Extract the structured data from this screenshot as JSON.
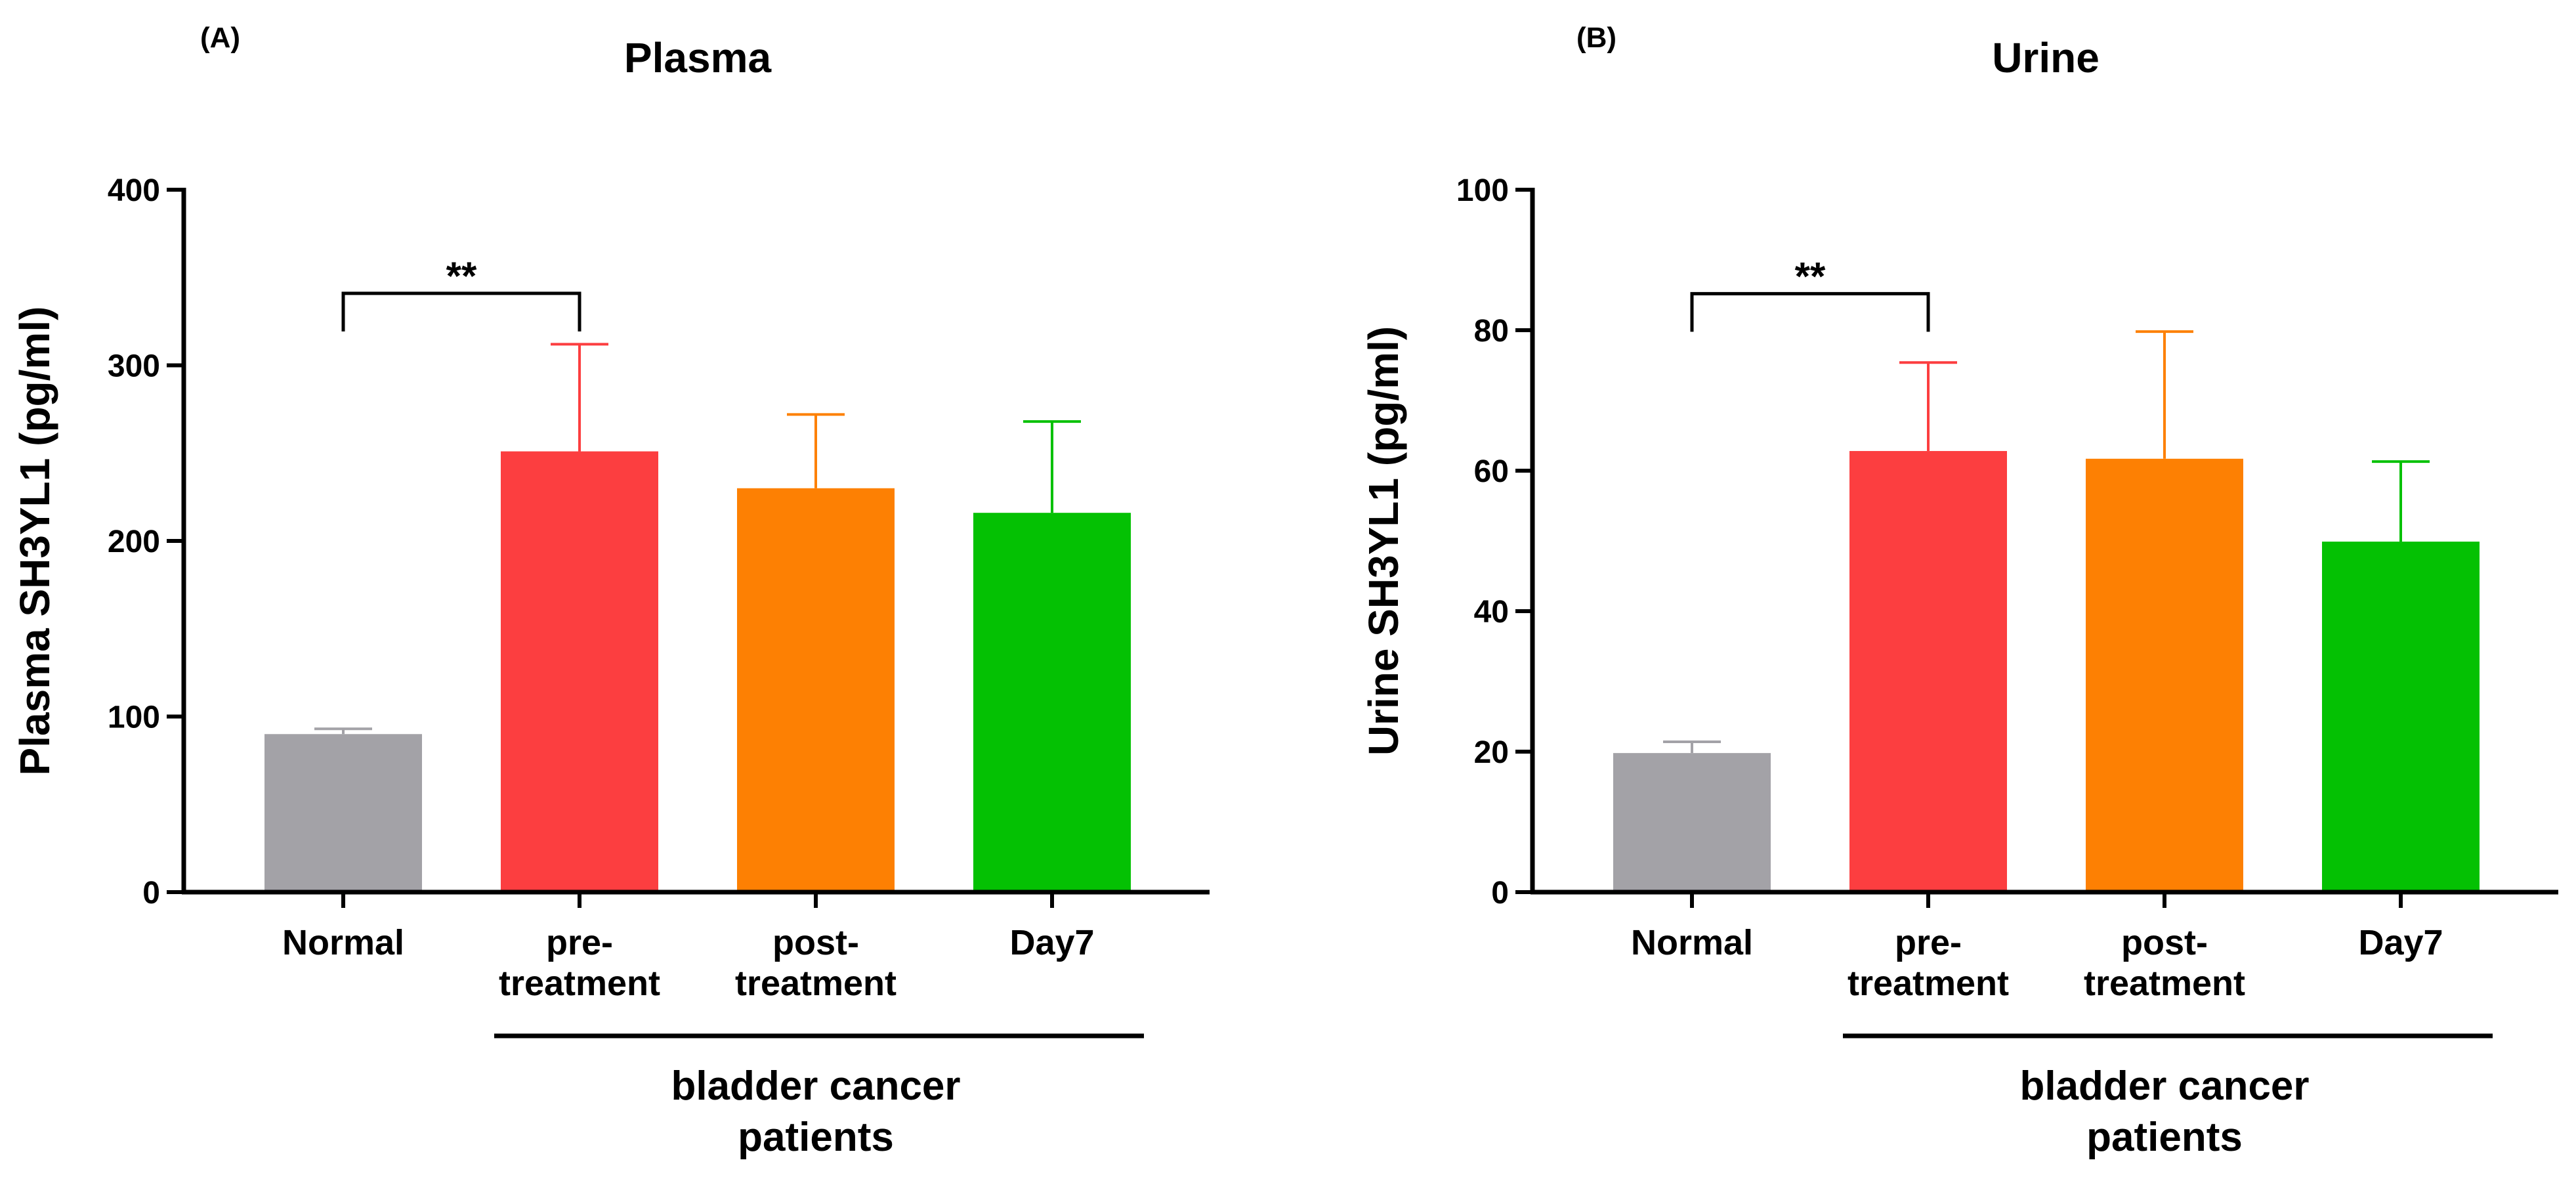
{
  "chart_data": [
    {
      "panel": "(A)",
      "type": "bar",
      "title": "Plasma",
      "xlabel": "",
      "ylabel": "Plasma SH3YL1 (pg/ml)",
      "ylim": [
        0,
        400
      ],
      "yticks": [
        0,
        100,
        200,
        300,
        400
      ],
      "categories": [
        "Normal",
        "pre-treatment",
        "post-treatment",
        "Day7"
      ],
      "category_lines": [
        [
          "Normal"
        ],
        [
          "pre-",
          "treatment"
        ],
        [
          "post-",
          "treatment"
        ],
        [
          "Day7"
        ]
      ],
      "values": [
        90,
        251,
        230,
        216
      ],
      "error_upper": [
        93,
        312,
        272,
        268
      ],
      "colors": [
        "#a3a2a7",
        "#fc3e40",
        "#fd8003",
        "#04c103"
      ],
      "group_label_lines": [
        "bladder cancer",
        "patients"
      ],
      "group_span": [
        1,
        3
      ],
      "significance": {
        "label": "**",
        "from": 0,
        "to": 1,
        "level": 341
      }
    },
    {
      "panel": "(B)",
      "type": "bar",
      "title": "Urine",
      "xlabel": "",
      "ylabel": "Urine SH3YL1 (pg/ml)",
      "ylim": [
        0,
        100
      ],
      "yticks": [
        0,
        20,
        40,
        60,
        80,
        100
      ],
      "categories": [
        "Normal",
        "pre-treatment",
        "post-treatment",
        "Day7"
      ],
      "category_lines": [
        [
          "Normal"
        ],
        [
          "pre-",
          "treatment"
        ],
        [
          "post-",
          "treatment"
        ],
        [
          "Day7"
        ]
      ],
      "values": [
        19.8,
        62.8,
        61.7,
        49.9
      ],
      "error_upper": [
        21.4,
        75.4,
        79.8,
        61.3
      ],
      "colors": [
        "#a3a2a7",
        "#fc3e40",
        "#fd8003",
        "#04c103"
      ],
      "group_label_lines": [
        "bladder cancer",
        "patients"
      ],
      "group_span": [
        1,
        3
      ],
      "significance": {
        "label": "**",
        "from": 0,
        "to": 1,
        "level": 85.2
      }
    }
  ]
}
